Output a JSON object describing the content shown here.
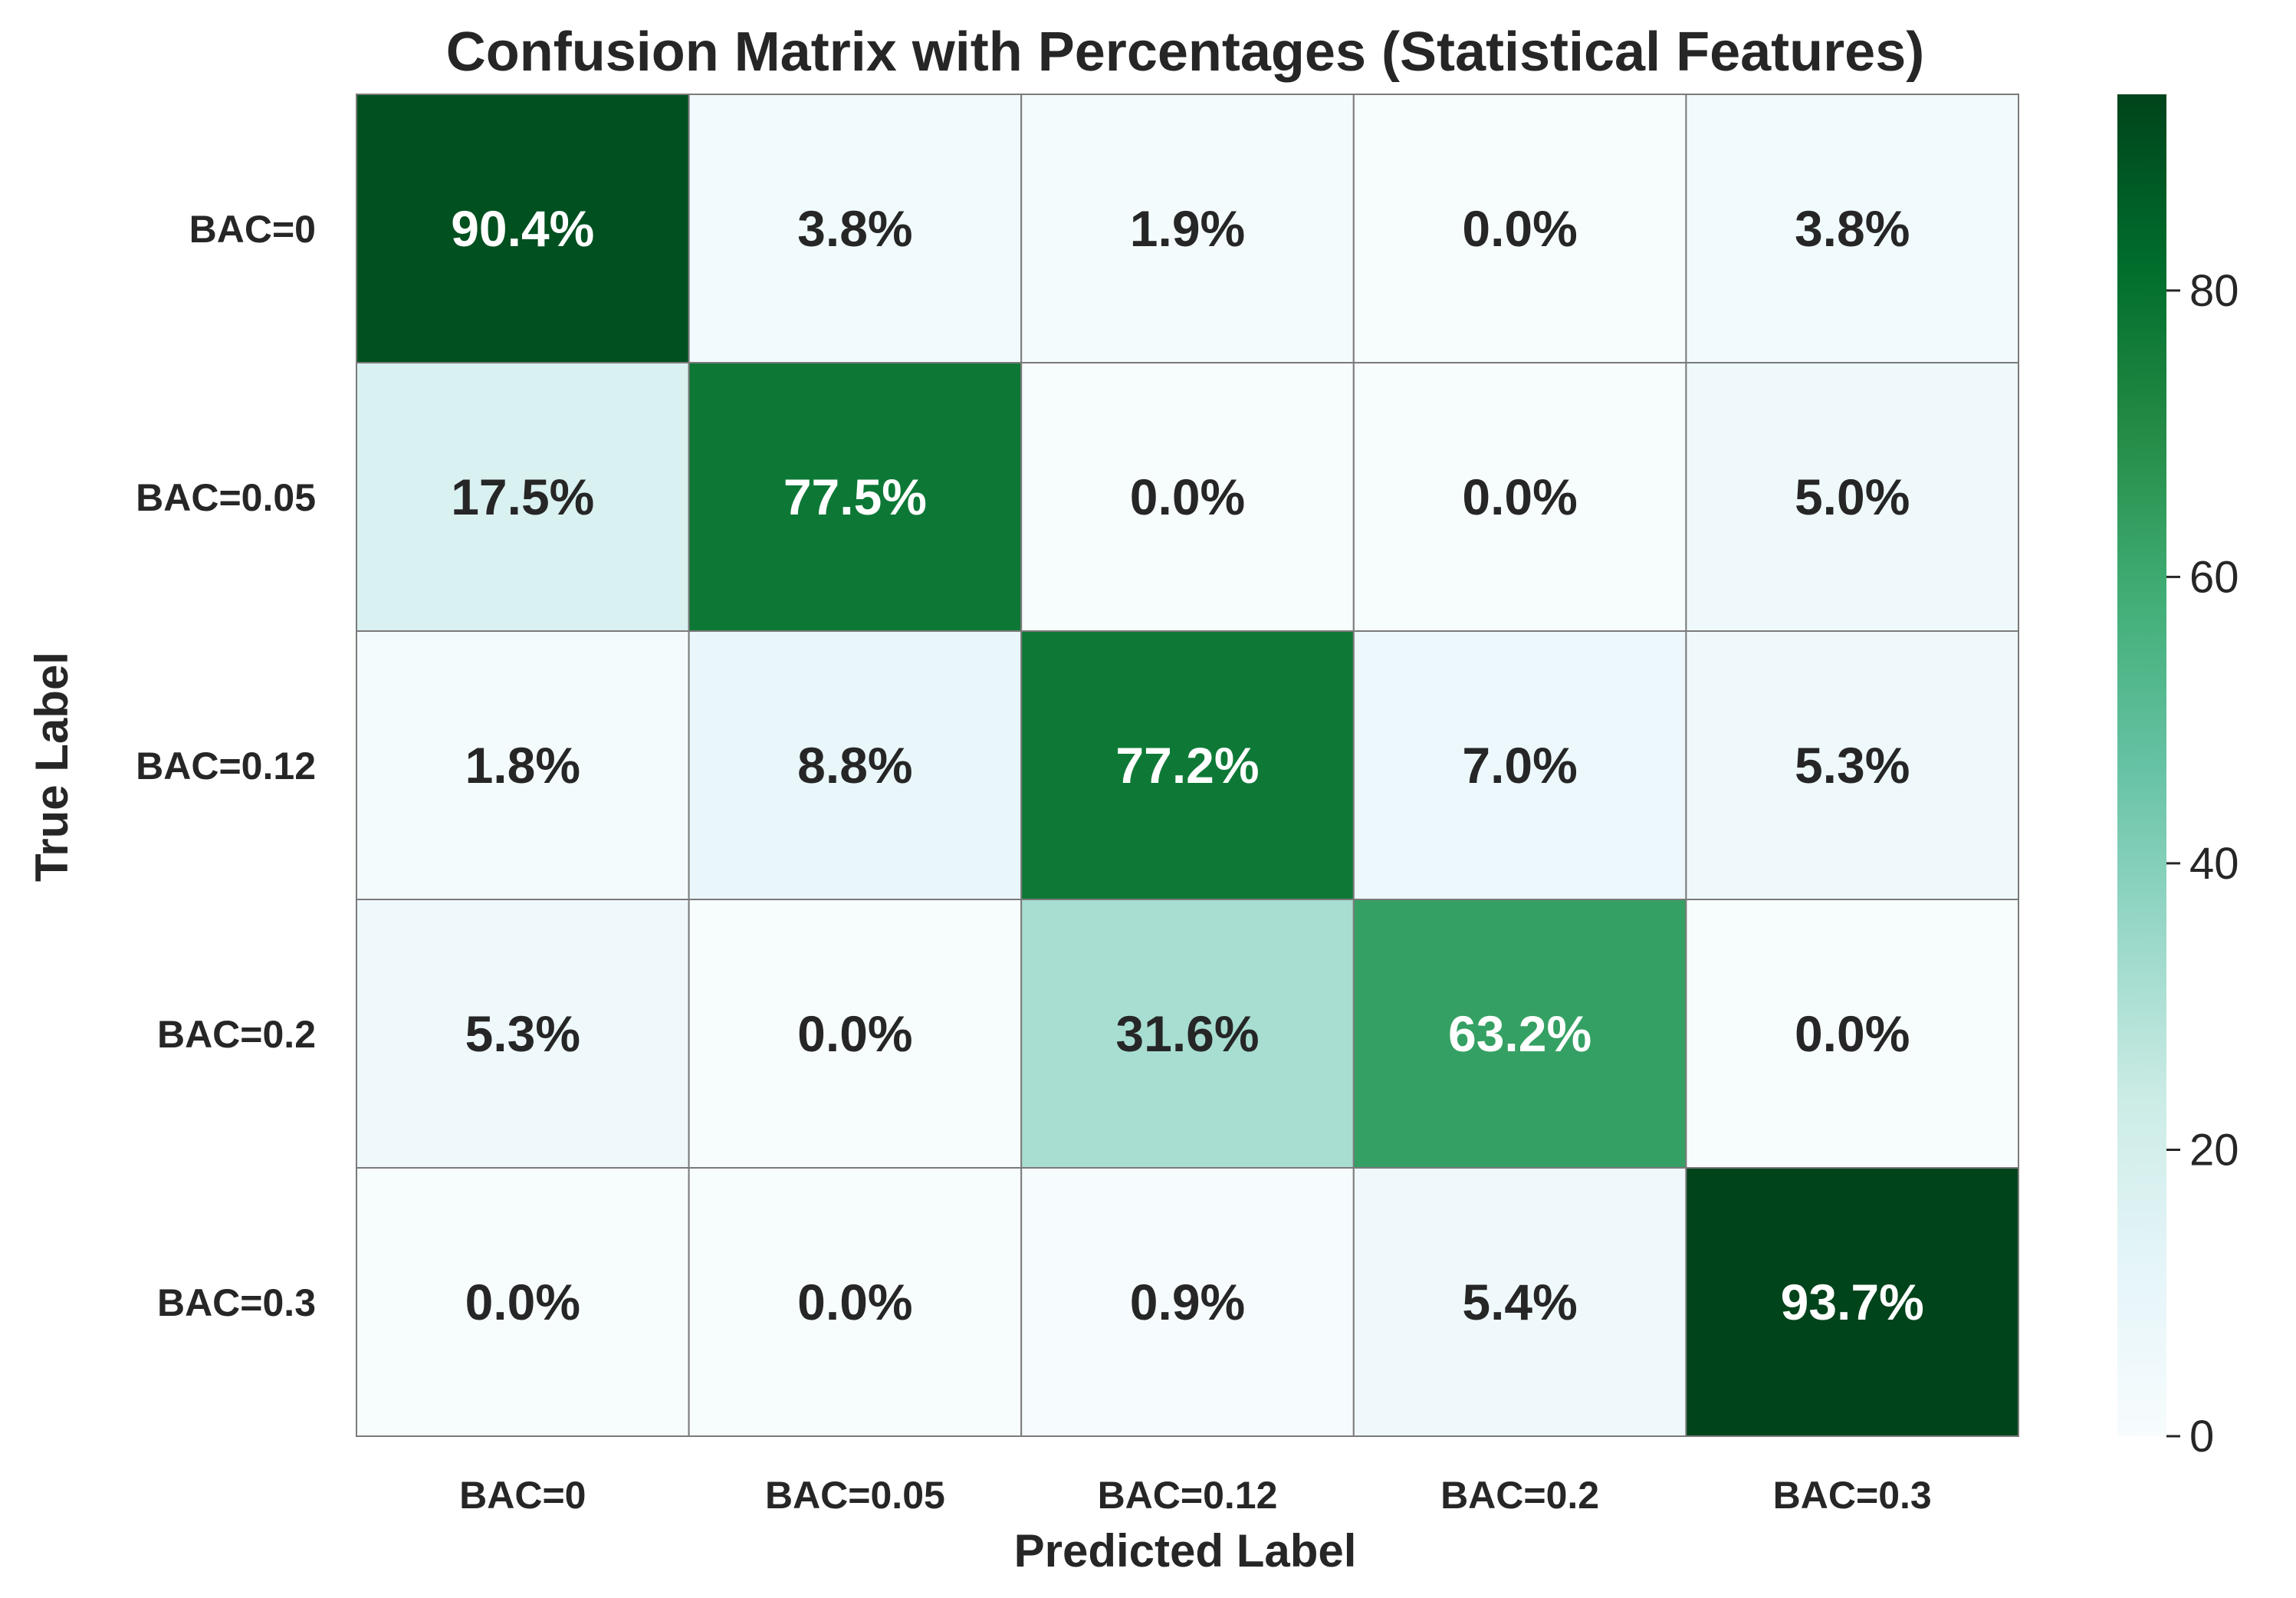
{
  "chart_data": {
    "type": "heatmap",
    "title": "Confusion Matrix with Percentages (Statistical Features)",
    "xlabel": "Predicted Label",
    "ylabel": "True Label",
    "x_categories": [
      "BAC=0",
      "BAC=0.05",
      "BAC=0.12",
      "BAC=0.2",
      "BAC=0.3"
    ],
    "y_categories": [
      "BAC=0",
      "BAC=0.05",
      "BAC=0.12",
      "BAC=0.2",
      "BAC=0.3"
    ],
    "values": [
      [
        90.4,
        3.8,
        1.9,
        0.0,
        3.8
      ],
      [
        17.5,
        77.5,
        0.0,
        0.0,
        5.0
      ],
      [
        1.8,
        8.8,
        77.2,
        7.0,
        5.3
      ],
      [
        5.3,
        0.0,
        31.6,
        63.2,
        0.0
      ],
      [
        0.0,
        0.0,
        0.9,
        5.4,
        93.7
      ]
    ],
    "value_suffix": "%",
    "colorbar": {
      "range": [
        0,
        93.7
      ],
      "ticks": [
        0,
        20,
        40,
        60,
        80
      ],
      "colormap": "Greens (BuGn-style)"
    }
  }
}
